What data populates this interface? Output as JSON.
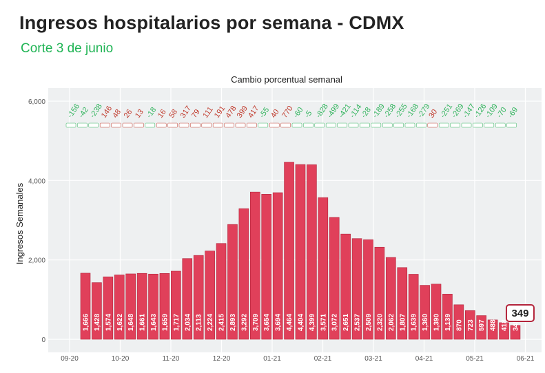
{
  "header": {
    "title": "Ingresos hospitalarios por semana - CDMX",
    "subtitle": "Corte 3 de junio"
  },
  "colors": {
    "bar": "#e0405a",
    "bar_stroke": "#b3233a",
    "increase": "#c0392b",
    "decrease": "#2fb35b",
    "panel": "#eef0f1",
    "grid": "#ffffff",
    "title_dark": "#222222",
    "subtitle_green": "#1fb454"
  },
  "chart_data": {
    "type": "bar",
    "title": "Cambio porcentual semanal",
    "xlabel": "",
    "ylabel": "Ingresos Semanales",
    "ylim": [
      0,
      6000
    ],
    "yticks": [
      0,
      2000,
      4000,
      6000
    ],
    "ytick_labels": [
      "0",
      "2,000",
      "4,000",
      "6,000"
    ],
    "xtick_labels": [
      "09-20",
      "10-20",
      "11-20",
      "12-20",
      "01-21",
      "02-21",
      "03-21",
      "04-21",
      "05-21",
      "06-21"
    ],
    "grid": true,
    "values": [
      1666,
      1428,
      1574,
      1622,
      1648,
      1661,
      1643,
      1659,
      1717,
      2034,
      2113,
      2224,
      2415,
      2893,
      3292,
      3709,
      3654,
      3694,
      4464,
      4404,
      4399,
      3571,
      3072,
      2651,
      2537,
      2509,
      2320,
      2062,
      1807,
      1639,
      1360,
      1390,
      1139,
      870,
      723,
      597,
      488,
      418,
      349
    ],
    "value_labels": [
      "1,666",
      "1,428",
      "1,574",
      "1,622",
      "1,648",
      "1,661",
      "1,643",
      "1,659",
      "1,717",
      "2,034",
      "2,113",
      "2,224",
      "2,415",
      "2,893",
      "3,292",
      "3,709",
      "3,654",
      "3,694",
      "4,464",
      "4,404",
      "4,399",
      "3,571",
      "3,072",
      "2,651",
      "2,537",
      "2,509",
      "2,320",
      "2,062",
      "1,807",
      "1,639",
      "1,360",
      "1,390",
      "1,139",
      "870",
      "723",
      "597",
      "488",
      "418",
      "349"
    ],
    "weekly_change": [
      -156,
      -42,
      -238,
      146,
      48,
      26,
      13,
      -18,
      16,
      58,
      317,
      79,
      111,
      191,
      478,
      399,
      417,
      -55,
      40,
      770,
      -60,
      -5,
      -828,
      -499,
      -421,
      -114,
      -28,
      -189,
      -258,
      -255,
      -168,
      -279,
      30,
      -251,
      -269,
      -147,
      -126,
      -109,
      -70,
      -69
    ],
    "highlight_label": "349"
  }
}
